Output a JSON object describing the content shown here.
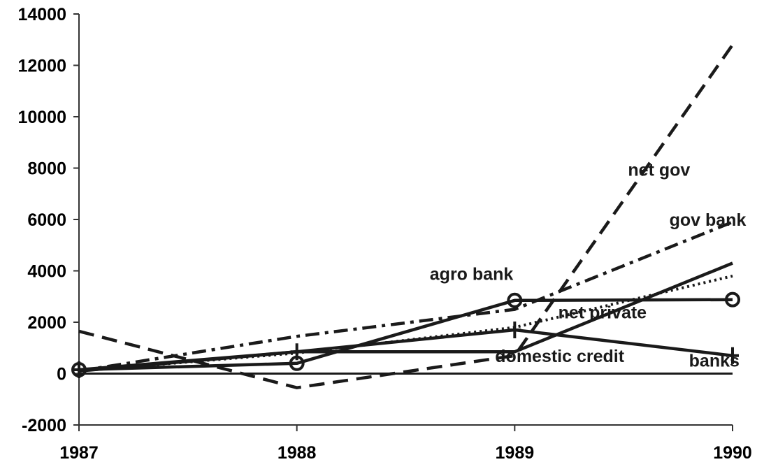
{
  "chart_data": {
    "type": "line",
    "x": [
      1987,
      1988,
      1989,
      1990
    ],
    "x_tick_labels": [
      "1987",
      "1988",
      "1989",
      "1990"
    ],
    "y_ticks": [
      -2000,
      0,
      2000,
      4000,
      6000,
      8000,
      10000,
      12000,
      14000
    ],
    "y_tick_labels": [
      "-2000",
      "0",
      "2000",
      "4000",
      "6000",
      "8000",
      "10000",
      "12000",
      "14000"
    ],
    "ylim": [
      -2000,
      14000
    ],
    "xlim": [
      1987,
      1990
    ],
    "title": "",
    "xlabel": "",
    "ylabel": "",
    "grid": false,
    "series": [
      {
        "name": "net gov",
        "style": "dashed",
        "color": "#1a1a1a",
        "points": [
          [
            1987,
            1650
          ],
          [
            1988,
            -550
          ],
          [
            1989,
            700
          ],
          [
            1990,
            12800
          ]
        ]
      },
      {
        "name": "gov bank",
        "style": "dashdot",
        "color": "#1a1a1a",
        "points": [
          [
            1987,
            100
          ],
          [
            1988,
            1450
          ],
          [
            1989,
            2500
          ],
          [
            1990,
            5900
          ]
        ]
      },
      {
        "name": "net private",
        "style": "dotted",
        "color": "#1a1a1a",
        "points": [
          [
            1987,
            100
          ],
          [
            1988,
            800
          ],
          [
            1989,
            1800
          ],
          [
            1990,
            3800
          ]
        ]
      },
      {
        "name": "domestic credit",
        "style": "solid",
        "color": "#1a1a1a",
        "points": [
          [
            1987,
            100
          ],
          [
            1988,
            850
          ],
          [
            1989,
            850
          ],
          [
            1990,
            4300
          ]
        ]
      },
      {
        "name": "agro bank",
        "style": "solid",
        "marker": "circle",
        "color": "#1a1a1a",
        "points": [
          [
            1987,
            150
          ],
          [
            1988,
            400
          ],
          [
            1989,
            2850
          ],
          [
            1990,
            2880
          ]
        ]
      },
      {
        "name": "banks",
        "style": "solid",
        "marker": "plus",
        "color": "#1a1a1a",
        "points": [
          [
            1987,
            150
          ],
          [
            1988,
            850
          ],
          [
            1989,
            1700
          ],
          [
            1990,
            700
          ]
        ]
      }
    ],
    "annotations": [
      {
        "text": "net gov",
        "x": 1989.52,
        "y": 7700
      },
      {
        "text": "gov bank",
        "x": 1989.71,
        "y": 5750
      },
      {
        "text": "agro bank",
        "x": 1988.61,
        "y": 3650
      },
      {
        "text": "net private",
        "x": 1989.2,
        "y": 2150
      },
      {
        "text": "domestic credit",
        "x": 1988.91,
        "y": 450
      },
      {
        "text": "banks",
        "x": 1989.8,
        "y": 270
      }
    ]
  }
}
